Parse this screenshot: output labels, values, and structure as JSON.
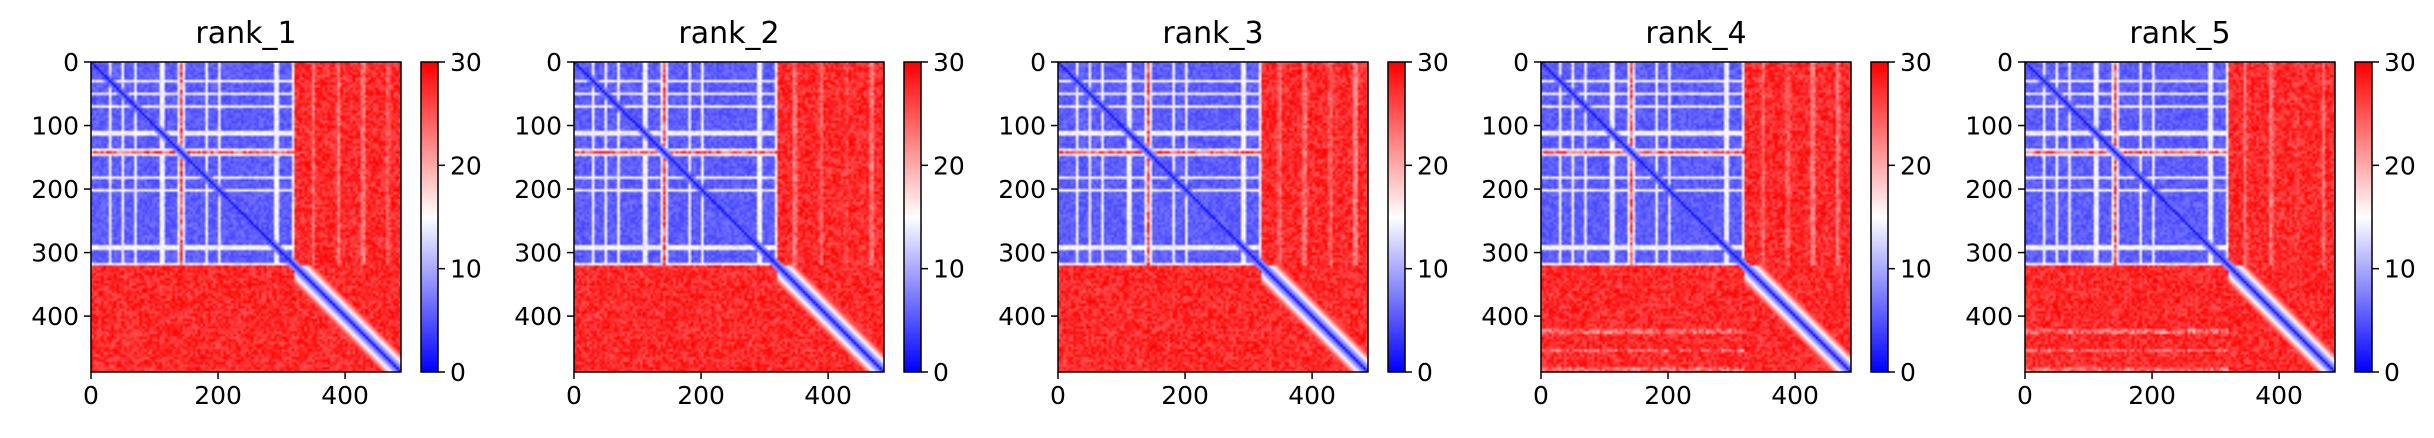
{
  "chart_data": [
    {
      "type": "heatmap",
      "title": "rank_1",
      "x_ticks": [
        0,
        200,
        400
      ],
      "y_ticks": [
        0,
        100,
        200,
        300,
        400
      ],
      "xlim": [
        0,
        488
      ],
      "ylim": [
        488,
        0
      ],
      "n": 488,
      "colorbar": {
        "ticks": [
          0,
          10,
          20,
          30
        ],
        "range": [
          0,
          30
        ],
        "colormap": "bwr"
      },
      "blue_block_end": 320,
      "white_rows": [
        28,
        48,
        68,
        110,
        180,
        200,
        290
      ],
      "white_cols": [
        140,
        320
      ],
      "red_rows": [
        140
      ],
      "red_band_extra": 0
    },
    {
      "type": "heatmap",
      "title": "rank_2",
      "x_ticks": [
        0,
        200,
        400
      ],
      "y_ticks": [
        0,
        100,
        200,
        300,
        400
      ],
      "xlim": [
        0,
        488
      ],
      "ylim": [
        488,
        0
      ],
      "n": 488,
      "colorbar": {
        "ticks": [
          0,
          10,
          20,
          30
        ],
        "range": [
          0,
          30
        ],
        "colormap": "bwr"
      },
      "blue_block_end": 320,
      "white_rows": [
        28,
        48,
        68,
        110,
        180,
        200,
        290
      ],
      "white_cols": [
        140,
        320
      ],
      "red_rows": [
        140
      ],
      "red_band_extra": 0
    },
    {
      "type": "heatmap",
      "title": "rank_3",
      "x_ticks": [
        0,
        200,
        400
      ],
      "y_ticks": [
        0,
        100,
        200,
        300,
        400
      ],
      "xlim": [
        0,
        488
      ],
      "ylim": [
        488,
        0
      ],
      "n": 488,
      "colorbar": {
        "ticks": [
          0,
          10,
          20,
          30
        ],
        "range": [
          0,
          30
        ],
        "colormap": "bwr"
      },
      "blue_block_end": 320,
      "white_rows": [
        28,
        48,
        68,
        110,
        180,
        200,
        290
      ],
      "white_cols": [
        140,
        320
      ],
      "red_rows": [
        140
      ],
      "red_band_extra": 0
    },
    {
      "type": "heatmap",
      "title": "rank_4",
      "x_ticks": [
        0,
        200,
        400
      ],
      "y_ticks": [
        0,
        100,
        200,
        300,
        400
      ],
      "xlim": [
        0,
        488
      ],
      "ylim": [
        488,
        0
      ],
      "n": 488,
      "colorbar": {
        "ticks": [
          0,
          10,
          20,
          30
        ],
        "range": [
          0,
          30
        ],
        "colormap": "bwr"
      },
      "blue_block_end": 320,
      "white_rows": [
        28,
        48,
        68,
        110,
        180,
        200,
        290
      ],
      "white_cols": [
        140,
        320
      ],
      "red_rows": [
        140
      ],
      "red_band_extra": 1
    },
    {
      "type": "heatmap",
      "title": "rank_5",
      "x_ticks": [
        0,
        200,
        400
      ],
      "y_ticks": [
        0,
        100,
        200,
        300,
        400
      ],
      "xlim": [
        0,
        488
      ],
      "ylim": [
        488,
        0
      ],
      "n": 488,
      "colorbar": {
        "ticks": [
          0,
          10,
          20,
          30
        ],
        "range": [
          0,
          30
        ],
        "colormap": "bwr"
      },
      "blue_block_end": 320,
      "white_rows": [
        28,
        48,
        68,
        110,
        180,
        200,
        290
      ],
      "white_cols": [
        140,
        320
      ],
      "red_rows": [
        140
      ],
      "red_band_extra": 1
    }
  ]
}
